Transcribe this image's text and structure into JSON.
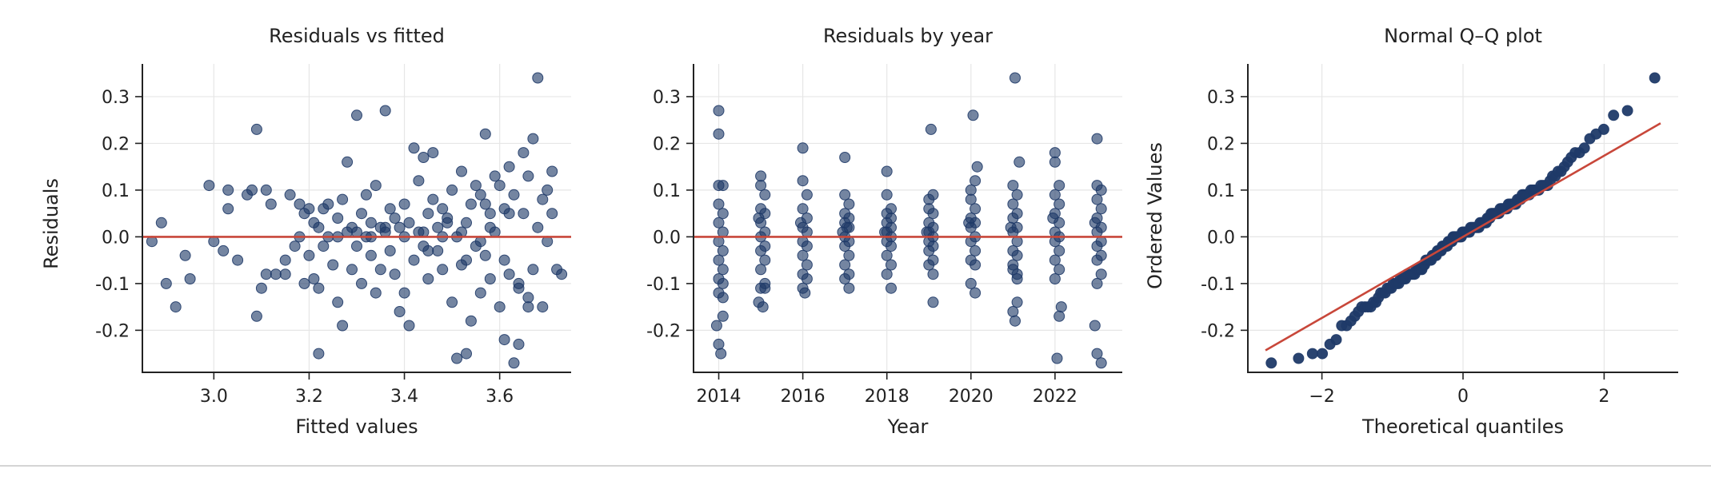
{
  "colors": {
    "point": "#1f3a68",
    "ref_line": "#c8473a",
    "grid": "#e6e6e6"
  },
  "chart_data": [
    {
      "type": "scatter",
      "title": "Residuals vs fitted",
      "xlabel": "Fitted values",
      "ylabel": "Residuals",
      "xlim": [
        2.85,
        3.75
      ],
      "ylim": [
        -0.29,
        0.37
      ],
      "xticks": [
        3.0,
        3.2,
        3.4,
        3.6
      ],
      "yticks": [
        -0.2,
        -0.1,
        0.0,
        0.1,
        0.2,
        0.3
      ],
      "reference_line": {
        "y": 0.0
      },
      "grid": true,
      "points": [
        [
          2.87,
          -0.01
        ],
        [
          2.89,
          0.03
        ],
        [
          2.9,
          -0.1
        ],
        [
          2.92,
          -0.15
        ],
        [
          2.94,
          -0.04
        ],
        [
          2.95,
          -0.09
        ],
        [
          2.99,
          0.11
        ],
        [
          3.0,
          -0.01
        ],
        [
          3.02,
          -0.03
        ],
        [
          3.03,
          0.1
        ],
        [
          3.03,
          0.06
        ],
        [
          3.05,
          -0.05
        ],
        [
          3.07,
          0.09
        ],
        [
          3.08,
          0.1
        ],
        [
          3.09,
          0.23
        ],
        [
          3.09,
          -0.17
        ],
        [
          3.1,
          -0.11
        ],
        [
          3.11,
          -0.08
        ],
        [
          3.11,
          0.1
        ],
        [
          3.12,
          0.07
        ],
        [
          3.13,
          -0.08
        ],
        [
          3.15,
          -0.08
        ],
        [
          3.15,
          -0.05
        ],
        [
          3.16,
          0.09
        ],
        [
          3.17,
          -0.02
        ],
        [
          3.18,
          0.07
        ],
        [
          3.19,
          0.05
        ],
        [
          3.19,
          -0.1
        ],
        [
          3.2,
          0.06
        ],
        [
          3.2,
          -0.04
        ],
        [
          3.21,
          -0.09
        ],
        [
          3.21,
          0.03
        ],
        [
          3.22,
          -0.25
        ],
        [
          3.22,
          -0.11
        ],
        [
          3.23,
          0.06
        ],
        [
          3.23,
          -0.02
        ],
        [
          3.24,
          0.0
        ],
        [
          3.24,
          0.07
        ],
        [
          3.25,
          -0.06
        ],
        [
          3.26,
          0.04
        ],
        [
          3.26,
          -0.14
        ],
        [
          3.27,
          0.08
        ],
        [
          3.27,
          -0.19
        ],
        [
          3.28,
          0.01
        ],
        [
          3.28,
          0.16
        ],
        [
          3.29,
          -0.07
        ],
        [
          3.29,
          0.02
        ],
        [
          3.3,
          0.26
        ],
        [
          3.3,
          -0.02
        ],
        [
          3.31,
          0.05
        ],
        [
          3.31,
          -0.1
        ],
        [
          3.32,
          0.0
        ],
        [
          3.32,
          0.09
        ],
        [
          3.33,
          -0.04
        ],
        [
          3.33,
          0.03
        ],
        [
          3.34,
          -0.12
        ],
        [
          3.34,
          0.11
        ],
        [
          3.35,
          0.02
        ],
        [
          3.35,
          -0.07
        ],
        [
          3.36,
          0.27
        ],
        [
          3.36,
          0.01
        ],
        [
          3.37,
          -0.03
        ],
        [
          3.37,
          0.06
        ],
        [
          3.38,
          -0.08
        ],
        [
          3.38,
          0.04
        ],
        [
          3.39,
          -0.16
        ],
        [
          3.39,
          0.02
        ],
        [
          3.4,
          0.07
        ],
        [
          3.4,
          -0.12
        ],
        [
          3.41,
          -0.19
        ],
        [
          3.41,
          0.03
        ],
        [
          3.42,
          0.19
        ],
        [
          3.42,
          -0.05
        ],
        [
          3.43,
          0.12
        ],
        [
          3.43,
          0.01
        ],
        [
          3.44,
          0.17
        ],
        [
          3.44,
          -0.02
        ],
        [
          3.45,
          0.05
        ],
        [
          3.45,
          -0.09
        ],
        [
          3.46,
          0.18
        ],
        [
          3.46,
          0.08
        ],
        [
          3.47,
          -0.03
        ],
        [
          3.47,
          0.02
        ],
        [
          3.48,
          0.06
        ],
        [
          3.48,
          -0.07
        ],
        [
          3.49,
          0.04
        ],
        [
          3.5,
          -0.14
        ],
        [
          3.5,
          0.1
        ],
        [
          3.51,
          -0.26
        ],
        [
          3.51,
          0.0
        ],
        [
          3.52,
          0.14
        ],
        [
          3.52,
          -0.06
        ],
        [
          3.53,
          -0.25
        ],
        [
          3.53,
          0.03
        ],
        [
          3.54,
          -0.18
        ],
        [
          3.54,
          0.07
        ],
        [
          3.55,
          -0.02
        ],
        [
          3.55,
          0.11
        ],
        [
          3.56,
          -0.12
        ],
        [
          3.56,
          0.09
        ],
        [
          3.57,
          0.22
        ],
        [
          3.57,
          -0.04
        ],
        [
          3.58,
          0.05
        ],
        [
          3.58,
          -0.09
        ],
        [
          3.59,
          0.13
        ],
        [
          3.59,
          0.01
        ],
        [
          3.6,
          -0.15
        ],
        [
          3.6,
          0.11
        ],
        [
          3.61,
          -0.22
        ],
        [
          3.61,
          0.06
        ],
        [
          3.62,
          0.15
        ],
        [
          3.62,
          -0.08
        ],
        [
          3.63,
          -0.27
        ],
        [
          3.63,
          0.09
        ],
        [
          3.64,
          -0.23
        ],
        [
          3.64,
          -0.11
        ],
        [
          3.65,
          0.18
        ],
        [
          3.65,
          0.05
        ],
        [
          3.66,
          -0.13
        ],
        [
          3.66,
          0.13
        ],
        [
          3.67,
          0.21
        ],
        [
          3.67,
          -0.07
        ],
        [
          3.68,
          0.34
        ],
        [
          3.68,
          0.02
        ],
        [
          3.69,
          -0.15
        ],
        [
          3.69,
          0.08
        ],
        [
          3.7,
          0.1
        ],
        [
          3.7,
          -0.01
        ],
        [
          3.71,
          0.05
        ],
        [
          3.72,
          -0.07
        ],
        [
          3.73,
          -0.08
        ],
        [
          3.71,
          0.14
        ],
        [
          3.66,
          -0.15
        ],
        [
          3.64,
          -0.1
        ],
        [
          3.62,
          0.05
        ],
        [
          3.58,
          0.02
        ],
        [
          3.56,
          -0.01
        ],
        [
          3.52,
          0.01
        ],
        [
          3.48,
          0.0
        ],
        [
          3.44,
          0.01
        ],
        [
          3.4,
          0.0
        ],
        [
          3.36,
          0.02
        ],
        [
          3.33,
          0.0
        ],
        [
          3.3,
          0.01
        ],
        [
          3.26,
          0.0
        ],
        [
          3.22,
          0.02
        ],
        [
          3.18,
          0.0
        ],
        [
          3.45,
          -0.03
        ],
        [
          3.49,
          0.03
        ],
        [
          3.53,
          -0.05
        ],
        [
          3.57,
          0.07
        ],
        [
          3.61,
          -0.05
        ]
      ]
    },
    {
      "type": "scatter",
      "title": "Residuals by year",
      "xlabel": "Year",
      "ylabel": "",
      "xlim": [
        2013.4,
        2023.6
      ],
      "ylim": [
        -0.29,
        0.37
      ],
      "xticks": [
        2014,
        2016,
        2018,
        2020,
        2022
      ],
      "yticks": [
        -0.2,
        -0.1,
        0.0,
        0.1,
        0.2,
        0.3
      ],
      "reference_line": {
        "y": 0.0
      },
      "grid": true,
      "points": [
        [
          2014.0,
          0.27
        ],
        [
          2014.0,
          0.22
        ],
        [
          2014.0,
          0.11
        ],
        [
          2014.1,
          0.11
        ],
        [
          2014.0,
          0.07
        ],
        [
          2014.1,
          0.05
        ],
        [
          2014.0,
          0.03
        ],
        [
          2014.1,
          0.01
        ],
        [
          2014.0,
          -0.01
        ],
        [
          2014.1,
          -0.03
        ],
        [
          2014.0,
          -0.05
        ],
        [
          2014.1,
          -0.07
        ],
        [
          2014.0,
          -0.09
        ],
        [
          2014.1,
          -0.1
        ],
        [
          2014.0,
          -0.12
        ],
        [
          2014.1,
          -0.13
        ],
        [
          2013.95,
          -0.19
        ],
        [
          2014.0,
          -0.23
        ],
        [
          2014.05,
          -0.25
        ],
        [
          2014.1,
          -0.17
        ],
        [
          2015.0,
          0.13
        ],
        [
          2015.0,
          0.11
        ],
        [
          2015.1,
          0.09
        ],
        [
          2015.0,
          0.06
        ],
        [
          2015.1,
          0.05
        ],
        [
          2015.0,
          0.03
        ],
        [
          2015.1,
          0.01
        ],
        [
          2015.0,
          0.0
        ],
        [
          2015.1,
          -0.02
        ],
        [
          2015.0,
          -0.03
        ],
        [
          2015.1,
          -0.05
        ],
        [
          2015.0,
          -0.07
        ],
        [
          2015.1,
          -0.1
        ],
        [
          2015.0,
          -0.11
        ],
        [
          2014.95,
          -0.14
        ],
        [
          2015.05,
          -0.15
        ],
        [
          2015.1,
          -0.11
        ],
        [
          2014.95,
          0.04
        ],
        [
          2016.0,
          0.19
        ],
        [
          2016.0,
          0.12
        ],
        [
          2016.1,
          0.09
        ],
        [
          2016.0,
          0.06
        ],
        [
          2016.1,
          0.04
        ],
        [
          2016.0,
          0.02
        ],
        [
          2016.1,
          0.01
        ],
        [
          2016.0,
          -0.01
        ],
        [
          2016.1,
          -0.02
        ],
        [
          2016.0,
          -0.04
        ],
        [
          2016.1,
          -0.06
        ],
        [
          2016.0,
          -0.08
        ],
        [
          2016.1,
          -0.09
        ],
        [
          2016.0,
          -0.11
        ],
        [
          2016.05,
          -0.12
        ],
        [
          2015.95,
          0.03
        ],
        [
          2017.0,
          0.17
        ],
        [
          2017.0,
          0.09
        ],
        [
          2017.1,
          0.07
        ],
        [
          2017.0,
          0.05
        ],
        [
          2017.1,
          0.04
        ],
        [
          2017.0,
          0.03
        ],
        [
          2017.1,
          0.02
        ],
        [
          2017.0,
          0.0
        ],
        [
          2017.1,
          -0.01
        ],
        [
          2017.0,
          -0.02
        ],
        [
          2017.1,
          -0.04
        ],
        [
          2017.0,
          -0.06
        ],
        [
          2017.1,
          -0.08
        ],
        [
          2017.0,
          -0.09
        ],
        [
          2017.1,
          -0.11
        ],
        [
          2016.95,
          0.01
        ],
        [
          2017.05,
          0.02
        ],
        [
          2018.0,
          0.14
        ],
        [
          2018.0,
          0.09
        ],
        [
          2018.1,
          0.06
        ],
        [
          2018.0,
          0.05
        ],
        [
          2018.1,
          0.04
        ],
        [
          2018.0,
          0.03
        ],
        [
          2018.1,
          0.02
        ],
        [
          2018.0,
          0.01
        ],
        [
          2018.1,
          0.0
        ],
        [
          2018.0,
          -0.01
        ],
        [
          2018.1,
          -0.02
        ],
        [
          2018.0,
          -0.04
        ],
        [
          2018.1,
          -0.06
        ],
        [
          2018.0,
          -0.08
        ],
        [
          2018.1,
          -0.11
        ],
        [
          2017.95,
          0.01
        ],
        [
          2019.0,
          0.08
        ],
        [
          2019.1,
          0.09
        ],
        [
          2019.0,
          0.06
        ],
        [
          2019.1,
          0.05
        ],
        [
          2019.0,
          0.03
        ],
        [
          2019.1,
          0.02
        ],
        [
          2019.0,
          0.01
        ],
        [
          2019.1,
          0.0
        ],
        [
          2019.0,
          -0.01
        ],
        [
          2019.1,
          -0.02
        ],
        [
          2019.0,
          -0.03
        ],
        [
          2019.1,
          -0.05
        ],
        [
          2019.0,
          -0.06
        ],
        [
          2019.1,
          -0.08
        ],
        [
          2019.05,
          0.23
        ],
        [
          2019.1,
          -0.14
        ],
        [
          2018.95,
          0.01
        ],
        [
          2020.0,
          0.1
        ],
        [
          2020.1,
          0.12
        ],
        [
          2020.0,
          0.08
        ],
        [
          2020.1,
          0.06
        ],
        [
          2020.0,
          0.04
        ],
        [
          2020.1,
          0.03
        ],
        [
          2020.0,
          0.02
        ],
        [
          2020.1,
          0.0
        ],
        [
          2020.0,
          -0.01
        ],
        [
          2020.1,
          -0.03
        ],
        [
          2020.0,
          -0.05
        ],
        [
          2020.1,
          -0.06
        ],
        [
          2020.0,
          -0.1
        ],
        [
          2020.1,
          -0.12
        ],
        [
          2020.05,
          0.26
        ],
        [
          2020.15,
          0.15
        ],
        [
          2019.95,
          0.03
        ],
        [
          2021.0,
          0.11
        ],
        [
          2021.1,
          0.09
        ],
        [
          2021.0,
          0.07
        ],
        [
          2021.1,
          0.05
        ],
        [
          2021.0,
          0.04
        ],
        [
          2021.1,
          0.02
        ],
        [
          2021.0,
          0.01
        ],
        [
          2021.1,
          -0.01
        ],
        [
          2021.0,
          -0.03
        ],
        [
          2021.1,
          -0.04
        ],
        [
          2021.0,
          -0.06
        ],
        [
          2021.1,
          -0.08
        ],
        [
          2021.0,
          -0.07
        ],
        [
          2021.1,
          -0.09
        ],
        [
          2021.05,
          0.34
        ],
        [
          2021.15,
          0.16
        ],
        [
          2021.0,
          -0.16
        ],
        [
          2021.05,
          -0.18
        ],
        [
          2021.1,
          -0.14
        ],
        [
          2020.95,
          0.02
        ],
        [
          2022.0,
          0.18
        ],
        [
          2022.0,
          0.16
        ],
        [
          2022.1,
          0.11
        ],
        [
          2022.0,
          0.09
        ],
        [
          2022.1,
          0.07
        ],
        [
          2022.0,
          0.05
        ],
        [
          2022.1,
          0.03
        ],
        [
          2022.0,
          0.01
        ],
        [
          2022.1,
          0.0
        ],
        [
          2022.0,
          -0.01
        ],
        [
          2022.1,
          -0.03
        ],
        [
          2022.0,
          -0.05
        ],
        [
          2022.1,
          -0.07
        ],
        [
          2022.0,
          -0.09
        ],
        [
          2022.15,
          -0.15
        ],
        [
          2022.1,
          -0.17
        ],
        [
          2022.05,
          -0.26
        ],
        [
          2021.95,
          0.04
        ],
        [
          2023.0,
          0.21
        ],
        [
          2023.0,
          0.11
        ],
        [
          2023.1,
          0.1
        ],
        [
          2023.0,
          0.08
        ],
        [
          2023.1,
          0.06
        ],
        [
          2023.0,
          0.04
        ],
        [
          2023.1,
          0.02
        ],
        [
          2023.0,
          0.01
        ],
        [
          2023.1,
          -0.01
        ],
        [
          2023.0,
          -0.02
        ],
        [
          2023.1,
          -0.04
        ],
        [
          2023.0,
          -0.05
        ],
        [
          2023.1,
          -0.08
        ],
        [
          2023.0,
          -0.1
        ],
        [
          2022.95,
          -0.19
        ],
        [
          2023.0,
          -0.25
        ],
        [
          2023.1,
          -0.27
        ],
        [
          2022.95,
          0.03
        ]
      ]
    },
    {
      "type": "scatter",
      "title": "Normal Q–Q plot",
      "xlabel": "Theoretical quantiles",
      "ylabel": "Ordered Values",
      "xlim": [
        -3.05,
        3.05
      ],
      "ylim": [
        -0.29,
        0.37
      ],
      "xticks": [
        -2,
        0,
        2
      ],
      "yticks": [
        -0.2,
        -0.1,
        0.0,
        0.1,
        0.2,
        0.3
      ],
      "reference_line": {
        "from": [
          -2.8,
          -0.243
        ],
        "to": [
          2.8,
          0.243
        ]
      },
      "grid": true,
      "sample_size": 200
    }
  ]
}
